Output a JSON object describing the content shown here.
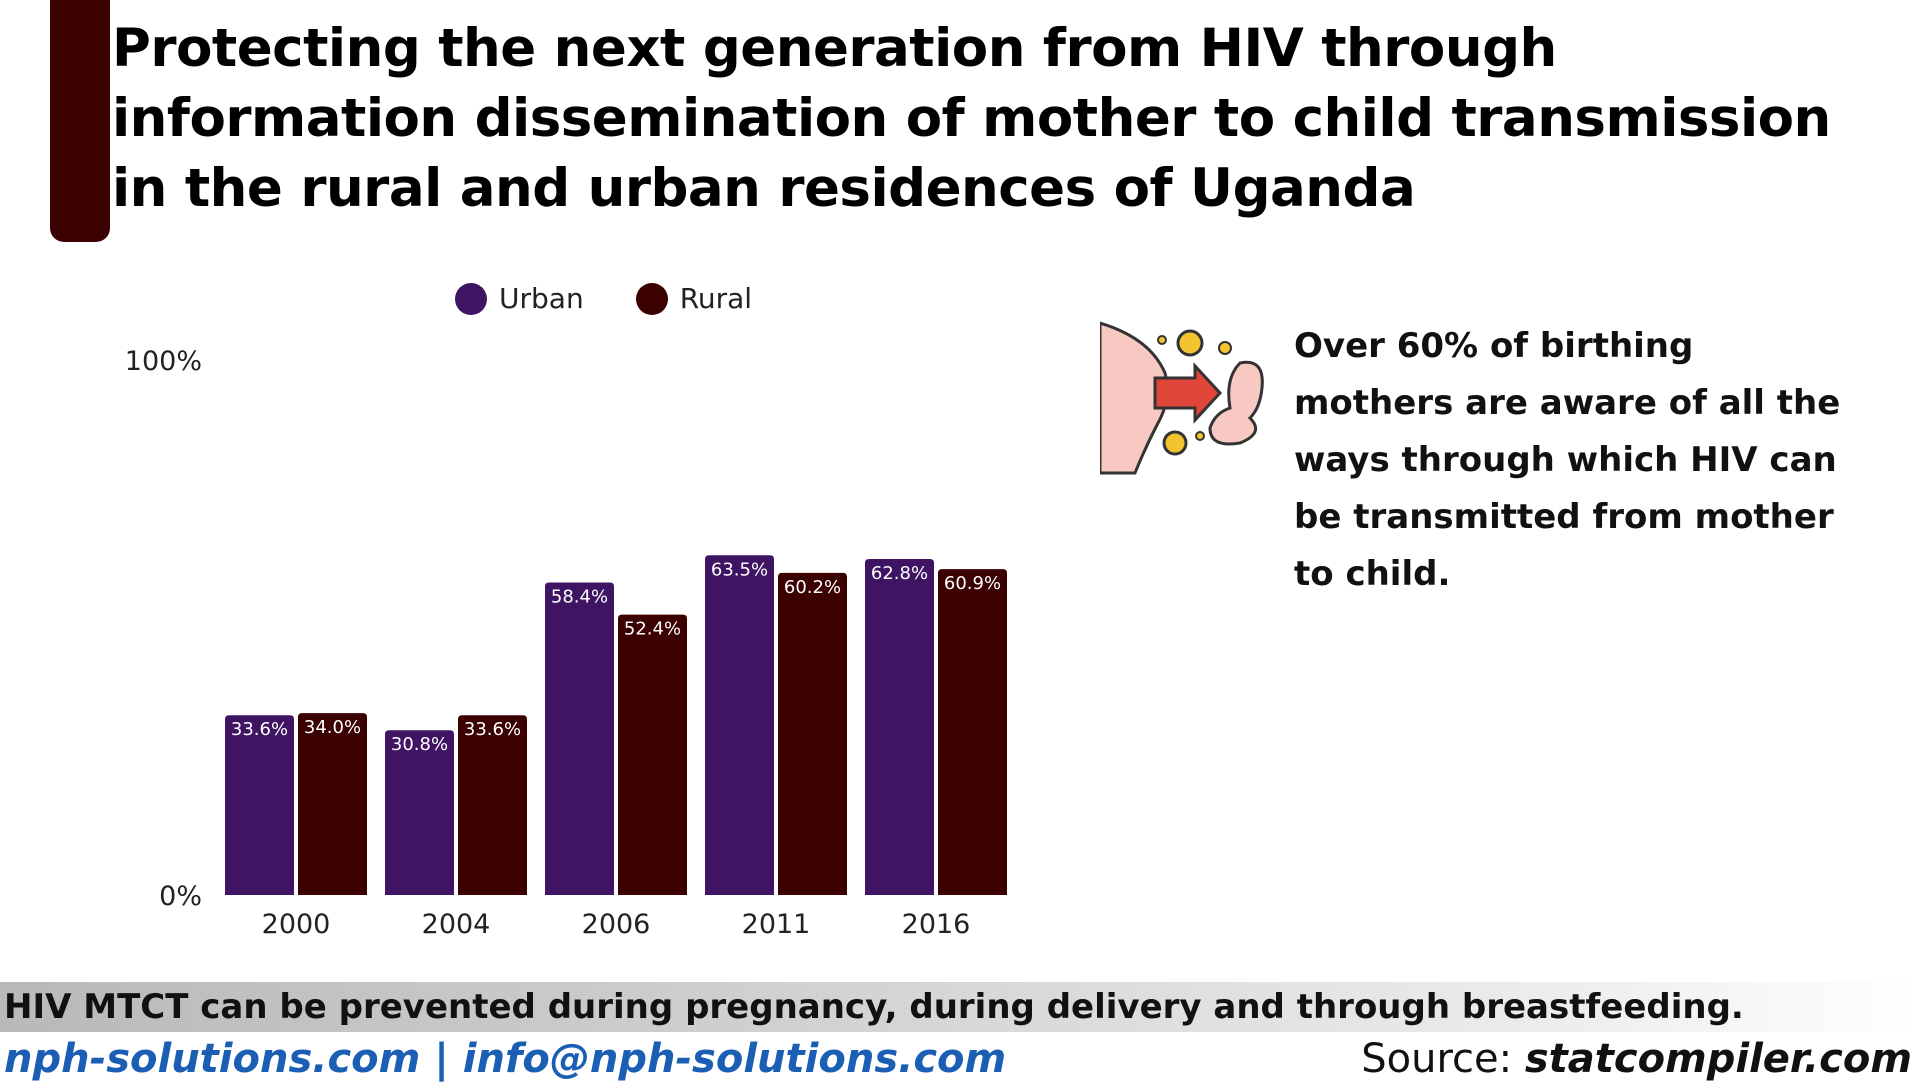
{
  "title": {
    "line1": "Protecting the next generation from HIV through",
    "line2": "information dissemination of mother to child transmission",
    "line3": "in the rural and urban residences of Uganda"
  },
  "colors": {
    "urban": "#3f1463",
    "rural": "#3b0000",
    "accent": "#3b0000"
  },
  "chart_data": {
    "type": "bar",
    "categories": [
      "2000",
      "2004",
      "2006",
      "2011",
      "2016"
    ],
    "series": [
      {
        "name": "Urban",
        "values": [
          33.6,
          30.8,
          58.4,
          63.5,
          62.8
        ],
        "labels": [
          "33.6%",
          "30.8%",
          "58.4%",
          "63.5%",
          "62.8%"
        ]
      },
      {
        "name": "Rural",
        "values": [
          34.0,
          33.6,
          52.4,
          60.2,
          60.9
        ],
        "labels": [
          "34.0%",
          "33.6%",
          "52.4%",
          "60.2%",
          "60.9%"
        ]
      }
    ],
    "ylim": [
      0,
      100
    ],
    "yticks": [
      "0%",
      "100%"
    ],
    "grid": false,
    "legend": "top"
  },
  "fact": {
    "icon": "mother-child-transmission-icon",
    "text": "Over 60% of birthing mothers are aware of all the ways through which HIV can be transmitted from mother to child."
  },
  "footer": {
    "note": "HIV MTCT can be prevented during pregnancy, during delivery and through breastfeeding.",
    "links": "nph-solutions.com | info@nph-solutions.com",
    "source_label": "Source:",
    "source_site": "statcompiler.com"
  }
}
